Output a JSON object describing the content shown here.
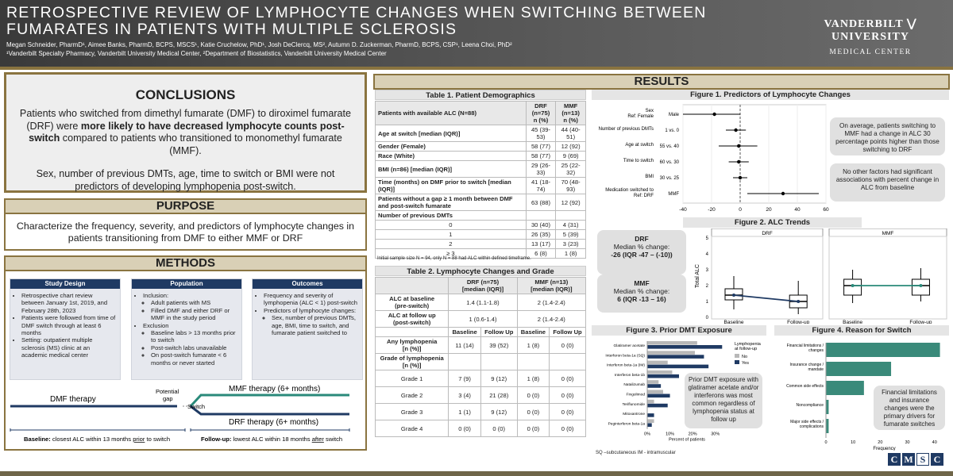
{
  "header": {
    "title": "RETROSPECTIVE REVIEW OF LYMPHOCYTE CHANGES WHEN SWITCHING BETWEEN FUMARATES IN PATIENTS WITH MULTIPLE SCLEROSIS",
    "authors": "Megan Schneider, PharmD¹, Aimee Banks, PharmD, BCPS, MSCS¹, Katie Cruchelow, PhD¹, Josh DeClercq, MS², Autumn D. Zuckerman, PharmD, BCPS, CSP¹, Leena Choi, PhD²",
    "affiliations": "¹Vanderbilt Specialty Pharmacy, Vanderbilt University Medical Center, ²Department of Biostatistics, Vanderbilt University Medical Center",
    "logo_line1": "VANDERBILT ⋁ UNIVERSITY",
    "logo_line2": "MEDICAL CENTER"
  },
  "conclusions": {
    "heading": "CONCLUSIONS",
    "p1_a": "Patients who switched from dimethyl fumarate (DMF) to diroximel fumarate (DRF) were ",
    "p1_bold": "more likely to have decreased lymphocyte counts post-switch",
    "p1_b": " compared to patients who transitioned to monomethyl fumarate (MMF).",
    "p2": "Sex, number of previous DMTs, age, time to switch or BMI were not predictors of developing lymphopenia post-switch."
  },
  "purpose": {
    "heading": "PURPOSE",
    "text": "Characterize the frequency, severity, and predictors of lymphocyte changes in patients transitioning from DMF to either MMF or DRF"
  },
  "methods": {
    "heading": "METHODS",
    "study_design": {
      "title": "Study Design",
      "items": [
        "Retrospective chart review between January 1st, 2019, and February 28th, 2023",
        "Patients were followed from time of DMF switch through at least 6 months",
        "Setting: outpatient multiple sclerosis (MS) clinic at an academic medical center"
      ]
    },
    "population": {
      "title": "Population",
      "inclusion": "Inclusion:",
      "inc_items": [
        "Adult patients with MS",
        "Filled DMF and either DRF or MMF in the study period"
      ],
      "exclusion": "Exclusion",
      "exc_items": [
        "Baseline labs > 13 months prior to switch",
        "Post-switch labs unavailable",
        "On post-switch fumarate < 6 months or never started"
      ]
    },
    "outcomes": {
      "title": "Outcomes",
      "items": [
        "Frequency and severity of lymphopenia (ALC < 1) post-switch",
        "Predictors of lymphocyte changes:"
      ],
      "sub": [
        "Sex, number of previous DMTs, age, BMI, time to switch, and fumarate patient switched to"
      ]
    },
    "timeline": {
      "dmf": "DMF therapy",
      "potential": "Potential",
      "gap": "gap",
      "switch": "Switch",
      "mmf": "MMF therapy (6+ months)",
      "drf": "DRF therapy (6+ months)",
      "baseline_b": "Baseline:",
      "baseline_t1": " closest ALC within 13 months ",
      "baseline_u": "prior",
      "baseline_t2": " to switch",
      "follow_b": "Follow-up:",
      "follow_t1": " lowest ALC within 18 months ",
      "follow_u": "after",
      "follow_t2": " switch"
    }
  },
  "results": {
    "heading": "RESULTS"
  },
  "table1": {
    "title": "Table 1. Patient Demographics",
    "head": [
      "Patients with available ALC (N=88)",
      "DRF\n(n=75)\nn (%)",
      "MMF\n(n=13)\nn (%)"
    ],
    "rows": [
      [
        "Age at switch [median (IQR)]",
        "45 (39-53)",
        "44 (40-51)",
        "b"
      ],
      [
        "Gender (Female)",
        "58 (77)",
        "12 (92)",
        "b"
      ],
      [
        "Race (White)",
        "58 (77)",
        "9 (69)",
        "b"
      ],
      [
        "BMI (n=86) [median (IQR)]",
        "29 (26-33)",
        "25 (22-32)",
        "b"
      ],
      [
        "Time (months) on DMF prior to switch [median (IQR)]",
        "41 (18-74)",
        "70 (48-93)",
        "b"
      ],
      [
        "Patients without a gap ≥ 1 month between DMF and post-switch fumarate",
        "63 (88)",
        "12 (92)",
        "b"
      ],
      [
        "Number of previous DMTs",
        "",
        "",
        "b"
      ],
      [
        "0",
        "30 (40)",
        "4 (31)",
        "c"
      ],
      [
        "1",
        "26 (35)",
        "5 (39)",
        "c"
      ],
      [
        "2",
        "13 (17)",
        "3 (23)",
        "c"
      ],
      [
        "≥ 3",
        "6 (8)",
        "1 (8)",
        "c"
      ]
    ],
    "footnote": "Initial sample size N = 94, only N = 88 had ALC within defined timeframe."
  },
  "table2": {
    "title": "Table 2. Lymphocyte Changes and Grade",
    "head": [
      "",
      "DRF (n=75)\n[median (IQR)]",
      "MMF (n=13)\n[median (IQR)]"
    ],
    "baseline_label": "ALC at baseline\n(pre-switch)",
    "baseline_drf": "1.4 (1.1-1.8)",
    "baseline_mmf": "2 (1.4-2.4)",
    "follow_label": "ALC at follow up\n(post-switch)",
    "follow_drf": "1 (0.6-1.4)",
    "follow_mmf": "2 (1.4-2.4)",
    "sub_head": [
      "Baseline",
      "Follow Up",
      "Baseline",
      "Follow Up"
    ],
    "rows": [
      [
        "Any lymphopenia\n[n (%)]",
        "11 (14)",
        "39 (52)",
        "1 (8)",
        "0 (0)"
      ],
      [
        "Grade of lymphopenia\n[n (%)]",
        "",
        "",
        "",
        ""
      ],
      [
        "Grade 1",
        "7 (9)",
        "9 (12)",
        "1 (8)",
        "0 (0)"
      ],
      [
        "Grade 2",
        "3 (4)",
        "21 (28)",
        "0 (0)",
        "0 (0)"
      ],
      [
        "Grade 3",
        "1 (1)",
        "9 (12)",
        "0 (0)",
        "0 (0)"
      ],
      [
        "Grade 4",
        "0 (0)",
        "0 (0)",
        "0 (0)",
        "0 (0)"
      ]
    ]
  },
  "chart_data": [
    {
      "type": "scatter",
      "title": "Figure 1. Predictors of Lymphocyte Changes",
      "xlabel": "Estimate",
      "xlim": [
        -40,
        60
      ],
      "x_ticks": [
        -40,
        -20,
        0,
        20,
        40,
        60
      ],
      "rows": [
        {
          "label": "Sex\nRef: Female",
          "level": "Male",
          "estimate": -18,
          "ci": [
            -40,
            0
          ]
        },
        {
          "label": "Number of previous DMTs",
          "level": "1 vs. 0",
          "estimate": -3,
          "ci": [
            -10,
            4
          ]
        },
        {
          "label": "Age at switch",
          "level": "55 vs. 40",
          "estimate": -1,
          "ci": [
            -15,
            12
          ]
        },
        {
          "label": "Time to switch",
          "level": "60 vs. 30",
          "estimate": -1,
          "ci": [
            -8,
            6
          ]
        },
        {
          "label": "BMI",
          "level": "30 vs. 25",
          "estimate": 0,
          "ci": [
            -5,
            5
          ]
        },
        {
          "label": "Medication switched to\nRef: DRF",
          "level": "MMF",
          "estimate": 30,
          "ci": [
            5,
            55
          ]
        }
      ]
    },
    {
      "type": "box",
      "title": "Figure 2. ALC Trends",
      "ylabel": "Total ALC",
      "ylim": [
        0,
        5
      ],
      "y_ticks": [
        0,
        1,
        2,
        3,
        4,
        5
      ],
      "panels": [
        {
          "name": "DRF",
          "categories": [
            "Baseline",
            "Follow-up"
          ],
          "median": [
            1.4,
            1.0
          ],
          "q1": [
            1.1,
            0.6
          ],
          "q3": [
            1.8,
            1.4
          ],
          "whisker_low": [
            0.5,
            0.2
          ],
          "whisker_high": [
            2.6,
            2.3
          ]
        },
        {
          "name": "MMF",
          "categories": [
            "Baseline",
            "Follow-up"
          ],
          "median": [
            2.0,
            2.0
          ],
          "q1": [
            1.4,
            1.4
          ],
          "q3": [
            2.4,
            2.4
          ],
          "whisker_low": [
            0.9,
            1.0
          ],
          "whisker_high": [
            3.0,
            3.1
          ]
        }
      ]
    },
    {
      "type": "bar",
      "title": "Figure 3. Prior DMT Exposure",
      "xlabel": "Percent of patients",
      "x_ticks": [
        "0%",
        "10%",
        "20%",
        "30%"
      ],
      "xlim": [
        0,
        35
      ],
      "categories": [
        "Glatiramer acetate",
        "Interferon beta-1a (SQ)",
        "Interferon beta-1a (IM)",
        "Interferon beta-1b",
        "Natalizumab",
        "Fingolimod",
        "Teriflunomide",
        "Mitoxantrone",
        "Peginterferon beta-1a"
      ],
      "legend_title": "Lymphopenia\nat follow-up",
      "series": [
        {
          "name": "No",
          "color": "#b8b8b8",
          "values": [
            22,
            21,
            9,
            11,
            5,
            7,
            3,
            0,
            3
          ]
        },
        {
          "name": "Yes",
          "color": "#1f3a63",
          "values": [
            33,
            25,
            27,
            14,
            6,
            10,
            9,
            3,
            2
          ]
        }
      ],
      "footnote": "SQ –subcutaneous IM - intramuscular"
    },
    {
      "type": "bar",
      "title": "Figure 4. Reason for Switch",
      "xlabel": "Frequency",
      "xlim": [
        0,
        43
      ],
      "x_ticks": [
        0,
        10,
        20,
        30,
        40
      ],
      "categories": [
        "Financial limitations / changes",
        "Insurance change / mandate",
        "Common side effects",
        "Noncompliance",
        "Major side effects / complications"
      ],
      "values": [
        42,
        24,
        14,
        1,
        1
      ],
      "color": "#3a8a7a"
    }
  ],
  "fig_text": {
    "fig1_callout1": "On average, patients switching to MMF had a change in ALC 30 percentage points higher than those switching to DRF",
    "fig1_callout2": "No other factors had significant associations with percent change in ALC from baseline",
    "fig2_drf_name": "DRF",
    "fig2_drf_label": "Median % change:",
    "fig2_drf_value": "-26 (IQR -47 – (-10))",
    "fig2_mmf_name": "MMF",
    "fig2_mmf_label": "Median % change:",
    "fig2_mmf_value": "6 (IQR -13 – 16)",
    "fig3_callout": "Prior DMT exposure with glatiramer acetate and/or interferons was most common regardless of lymphopenia status at follow up",
    "fig4_callout": "Financial limitations and insurance changes were the primary drivers for fumarate switches"
  },
  "cmsc_logo": "CMSC"
}
